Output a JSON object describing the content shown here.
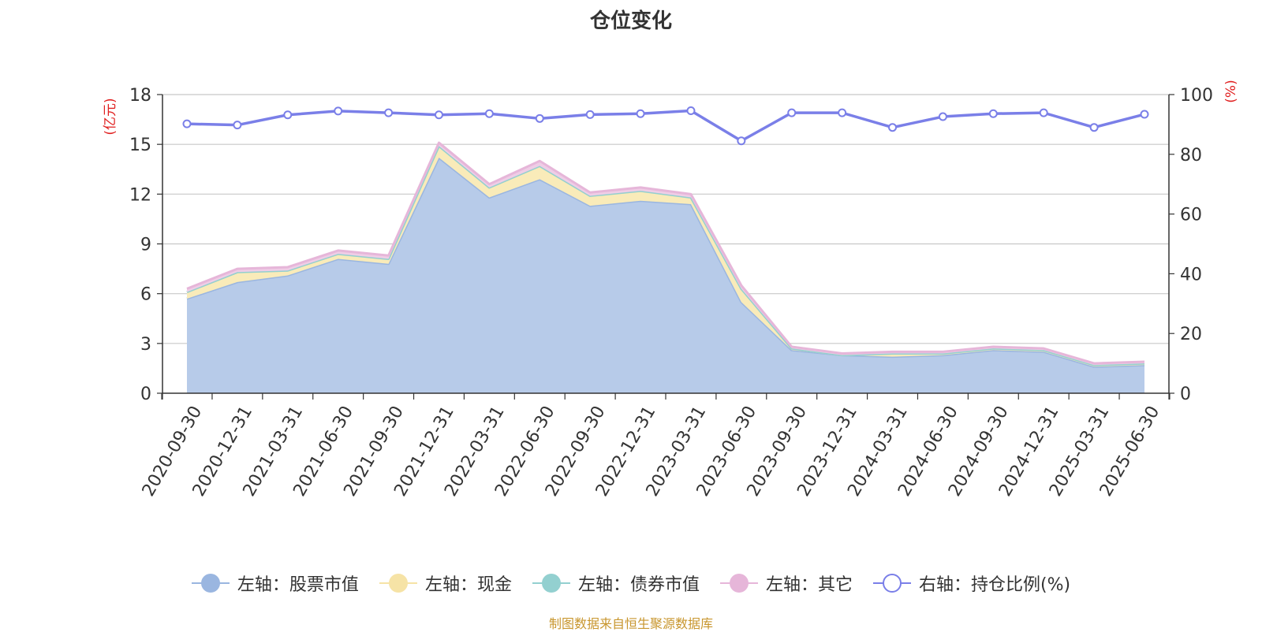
{
  "chart_data": {
    "type": "area",
    "title": "仓位变化",
    "categories": [
      "2020-09-30",
      "2020-12-31",
      "2021-03-31",
      "2021-06-30",
      "2021-09-30",
      "2021-12-31",
      "2022-03-31",
      "2022-06-30",
      "2022-09-30",
      "2022-12-31",
      "2023-03-31",
      "2023-06-30",
      "2023-09-30",
      "2023-12-31",
      "2024-03-31",
      "2024-06-30",
      "2024-09-30",
      "2024-12-31",
      "2025-03-31",
      "2025-06-30"
    ],
    "y_left": {
      "label": "(亿元)",
      "ylim": [
        0,
        18
      ],
      "ticks": [
        "0",
        "3",
        "6",
        "9",
        "12",
        "15",
        "18"
      ]
    },
    "y_right": {
      "label": "(%)",
      "ylim": [
        0,
        100
      ],
      "ticks": [
        "0",
        "20",
        "40",
        "60",
        "80",
        "100"
      ]
    },
    "stack_order": [
      "股票市值",
      "现金",
      "债券市值",
      "其它"
    ],
    "series": [
      {
        "name": "左轴：股票市值",
        "axis": "left",
        "color": "#9ab6e0",
        "fill": "#b7cbe9",
        "values": [
          5.7,
          6.7,
          7.1,
          8.1,
          7.8,
          14.2,
          11.8,
          12.9,
          11.3,
          11.6,
          11.4,
          5.5,
          2.6,
          2.3,
          2.2,
          2.3,
          2.6,
          2.5,
          1.6,
          1.7
        ]
      },
      {
        "name": "左轴：现金",
        "axis": "left",
        "color": "#f6e3a6",
        "fill": "#f9ebb9",
        "values": [
          0.4,
          0.6,
          0.3,
          0.3,
          0.3,
          0.7,
          0.6,
          0.8,
          0.6,
          0.6,
          0.4,
          0.8,
          0.1,
          0.0,
          0.2,
          0.1,
          0.1,
          0.1,
          0.1,
          0.1
        ]
      },
      {
        "name": "左轴：债券市值",
        "axis": "left",
        "color": "#93d0d0",
        "fill": "#b1dede",
        "values": [
          0,
          0,
          0,
          0,
          0,
          0,
          0,
          0,
          0,
          0,
          0,
          0,
          0,
          0,
          0,
          0,
          0,
          0,
          0,
          0
        ]
      },
      {
        "name": "左轴：其它",
        "axis": "left",
        "color": "#e6b6d9",
        "fill": "#efcde6",
        "values": [
          0.2,
          0.2,
          0.2,
          0.2,
          0.2,
          0.2,
          0.2,
          0.3,
          0.2,
          0.2,
          0.2,
          0.2,
          0.1,
          0.1,
          0.1,
          0.1,
          0.1,
          0.1,
          0.1,
          0.1
        ]
      },
      {
        "name": "右轴：持仓比例(%)",
        "axis": "right",
        "color": "#7a7fe8",
        "values": [
          90.2,
          89.8,
          93.2,
          94.5,
          93.9,
          93.2,
          93.6,
          92.0,
          93.3,
          93.6,
          94.6,
          84.5,
          93.9,
          93.9,
          89.0,
          92.6,
          93.6,
          93.9,
          89.0,
          93.4
        ]
      }
    ],
    "grid": true,
    "legend_position": "bottom"
  },
  "legend": [
    {
      "label": "左轴：股票市值",
      "color": "#9ab6e0",
      "hollow": false
    },
    {
      "label": "左轴：现金",
      "color": "#f6e3a6",
      "hollow": false
    },
    {
      "label": "左轴：债券市值",
      "color": "#93d0d0",
      "hollow": false
    },
    {
      "label": "左轴：其它",
      "color": "#e6b6d9",
      "hollow": false
    },
    {
      "label": "右轴：持仓比例(%)",
      "color": "#7a7fe8",
      "hollow": true
    }
  ],
  "source_note": "制图数据来自恒生聚源数据库",
  "colors": {
    "axis_label": "#e01f1f",
    "grid": "#c8c8c8",
    "axis": "#333333"
  }
}
